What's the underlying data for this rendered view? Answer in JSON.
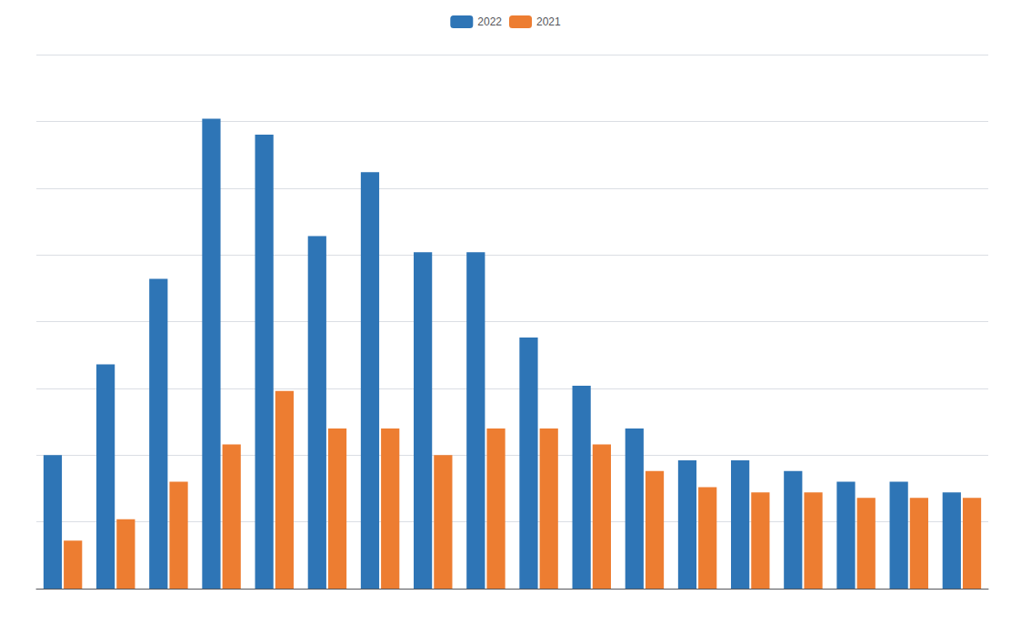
{
  "chart_data": {
    "type": "bar",
    "categories": [
      null,
      null,
      null,
      null,
      null,
      null,
      null,
      null,
      null,
      null,
      null,
      null,
      null,
      null,
      null,
      null,
      null,
      null
    ],
    "series": [
      {
        "name": "2022",
        "color": "#2E75B6",
        "values": [
          25,
          42,
          58,
          88,
          85,
          66,
          78,
          63,
          63,
          47,
          38,
          30,
          24,
          24,
          22,
          20,
          20,
          18
        ]
      },
      {
        "name": "2021",
        "color": "#ED7D31",
        "values": [
          9,
          13,
          20,
          27,
          37,
          30,
          30,
          25,
          30,
          30,
          27,
          22,
          19,
          18,
          18,
          17,
          17,
          17
        ]
      }
    ],
    "ylim": [
      0,
      100
    ],
    "yticks": [
      0,
      12.5,
      25,
      37.5,
      50,
      62.5,
      75,
      87.5,
      100
    ],
    "grid": true,
    "legend": "top",
    "tick_labels": false
  }
}
